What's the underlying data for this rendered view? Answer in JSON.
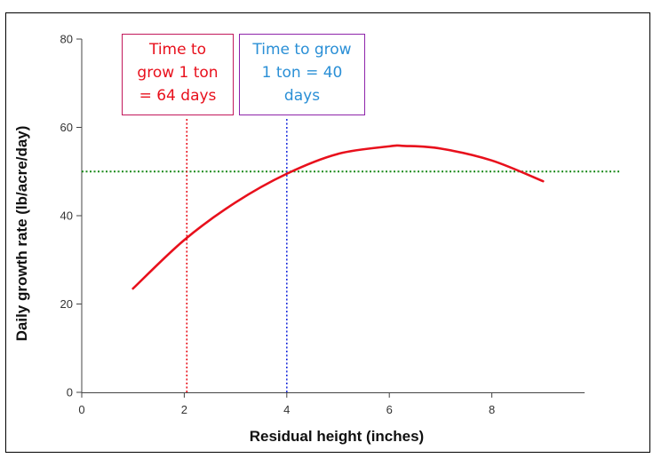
{
  "chart_data": {
    "type": "line",
    "title": "",
    "xlabel": "Residual height (inches)",
    "ylabel": "Daily growth rate (lb/acre/day)",
    "xlim": [
      0,
      10
    ],
    "ylim": [
      0,
      80
    ],
    "x_ticks": [
      0,
      2,
      4,
      6,
      8
    ],
    "y_ticks": [
      0,
      20,
      40,
      60,
      80
    ],
    "grid": false,
    "legend": "none",
    "series": [
      {
        "color": "#e8101c",
        "style": "solid",
        "x": [
          1,
          2,
          3,
          4,
          5,
          6,
          6.3,
          7,
          8,
          9
        ],
        "y": [
          23.5,
          34.5,
          43.0,
          49.5,
          54.0,
          55.7,
          55.8,
          55.2,
          52.5,
          47.8
        ]
      }
    ],
    "reference_lines": [
      {
        "orientation": "horizontal",
        "value": 50,
        "color": "#1a8a1a",
        "style": "dotted"
      },
      {
        "orientation": "vertical",
        "value": 2.05,
        "color": "#e8101c",
        "style": "dotted"
      },
      {
        "orientation": "vertical",
        "value": 4.0,
        "color": "#2233dd",
        "style": "dotted"
      }
    ],
    "annotations": [
      {
        "lines": [
          "Time to",
          "grow 1 ton",
          "= 64 days"
        ],
        "text_color": "#e8101c",
        "border_color": "#c2185b"
      },
      {
        "lines": [
          "Time to grow",
          "1 ton = 40",
          "days"
        ],
        "text_color": "#2a8fd6",
        "border_color": "#8e24aa"
      }
    ]
  }
}
